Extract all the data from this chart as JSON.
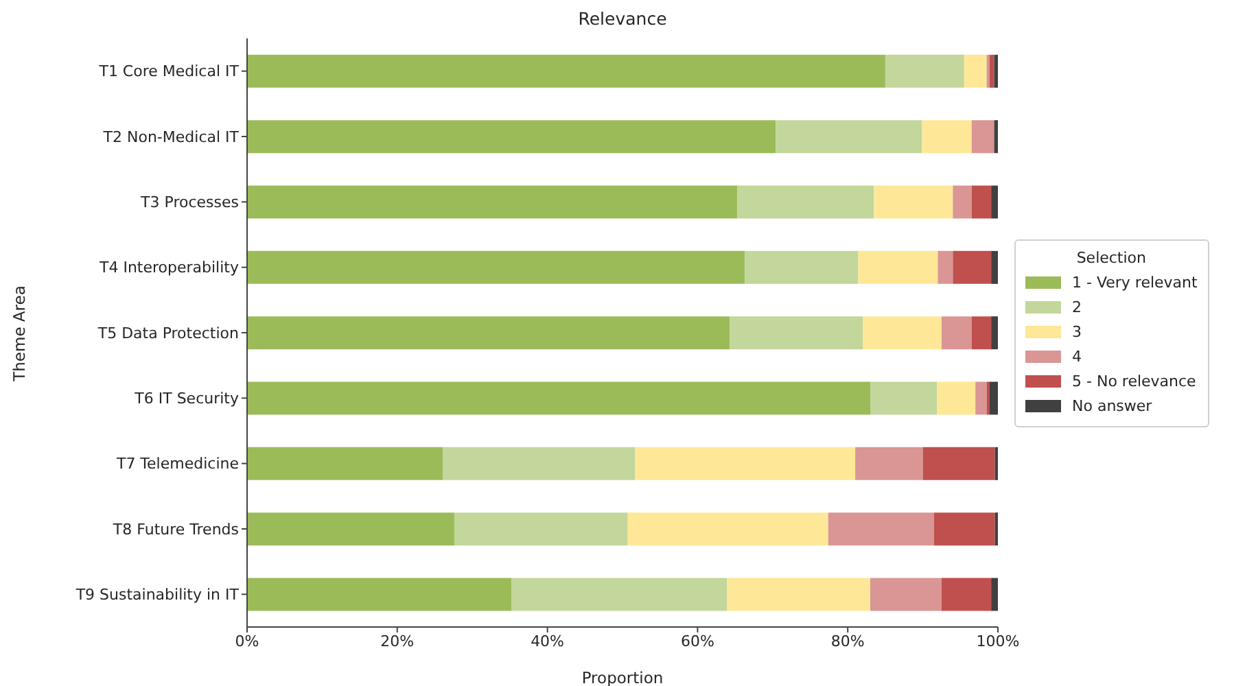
{
  "chart_data": {
    "type": "bar",
    "title": "Relevance",
    "xlabel": "Proportion",
    "ylabel": "Theme Area",
    "legend_title": "Selection",
    "orientation": "horizontal",
    "stacked": true,
    "categories": [
      "T1 Core Medical IT",
      "T2 Non-Medical IT",
      "T3 Processes",
      "T4 Interoperability",
      "T5 Data Protection",
      "T6 IT Security",
      "T7 Telemedicine",
      "T8 Future Trends",
      "T9 Sustainability in IT"
    ],
    "series": [
      {
        "name": "1 - Very relevant",
        "color": "#9bbb59",
        "values": [
          85.0,
          70.4,
          65.3,
          66.3,
          64.3,
          83.0,
          26.1,
          27.6,
          35.2
        ]
      },
      {
        "name": "2",
        "color": "#c3d69b",
        "values": [
          10.5,
          19.5,
          18.2,
          15.1,
          17.7,
          8.9,
          25.6,
          23.1,
          28.7
        ]
      },
      {
        "name": "3",
        "color": "#fee796",
        "values": [
          3.0,
          6.6,
          10.5,
          10.6,
          10.5,
          5.1,
          29.3,
          26.7,
          19.1
        ]
      },
      {
        "name": "4",
        "color": "#d99694",
        "values": [
          0.4,
          3.0,
          2.5,
          2.0,
          4.0,
          1.5,
          9.0,
          14.1,
          9.5
        ]
      },
      {
        "name": "5 - No relevance",
        "color": "#c0504d",
        "values": [
          0.6,
          0,
          2.6,
          5.1,
          2.6,
          0.4,
          9.6,
          8.1,
          6.6
        ]
      },
      {
        "name": "No answer",
        "color": "#404040",
        "values": [
          0.5,
          0.5,
          0.9,
          0.9,
          0.9,
          1.1,
          0.4,
          0.4,
          0.9
        ]
      }
    ],
    "xlim": [
      0,
      100
    ],
    "xticks": [
      {
        "value": 0,
        "label": "0%"
      },
      {
        "value": 20,
        "label": "20%"
      },
      {
        "value": 40,
        "label": "40%"
      },
      {
        "value": 60,
        "label": "60%"
      },
      {
        "value": 80,
        "label": "80%"
      },
      {
        "value": 100,
        "label": "100%"
      }
    ],
    "legend": "right"
  }
}
